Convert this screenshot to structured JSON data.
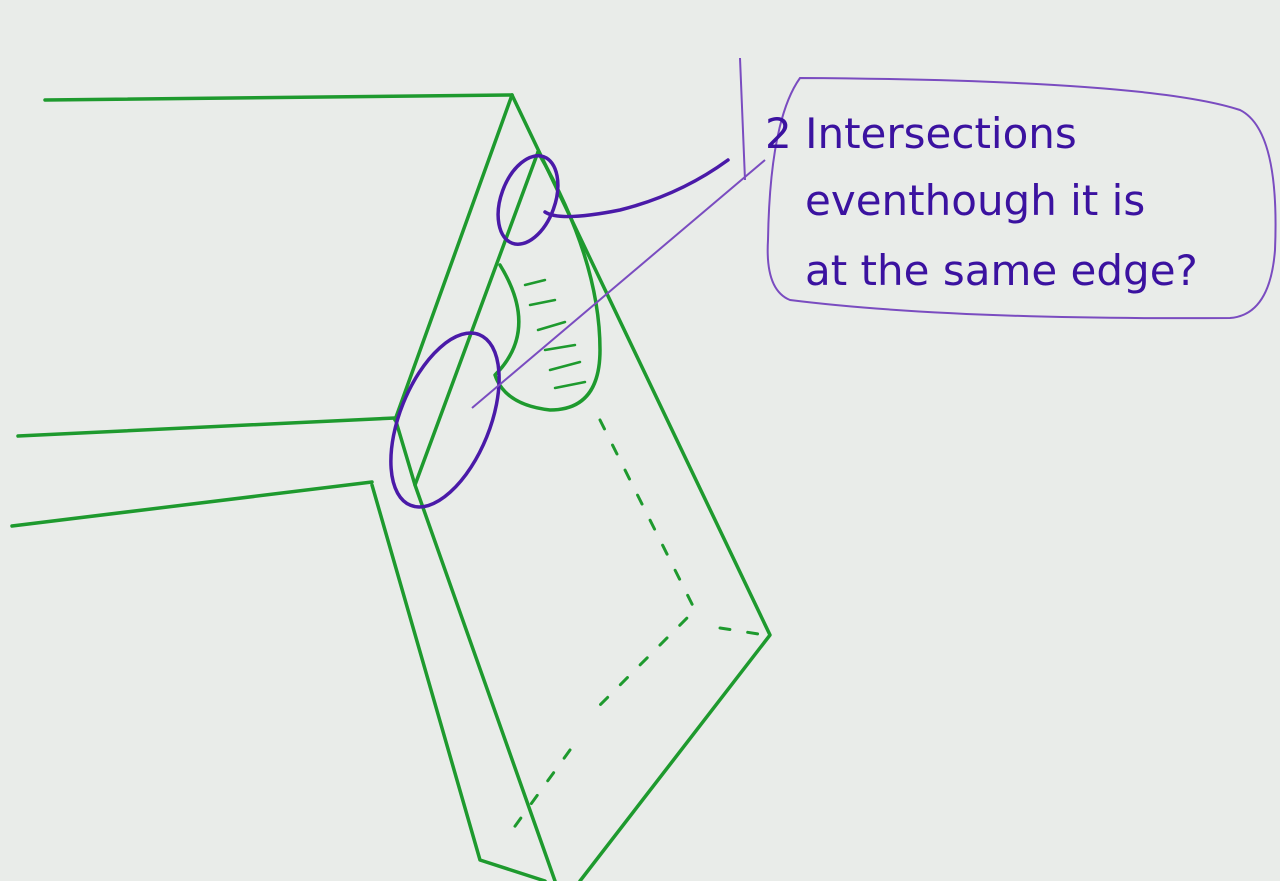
{
  "annotation": {
    "lines": [
      "2 Intersections",
      "eventhough it is",
      "at the same edge?"
    ]
  }
}
